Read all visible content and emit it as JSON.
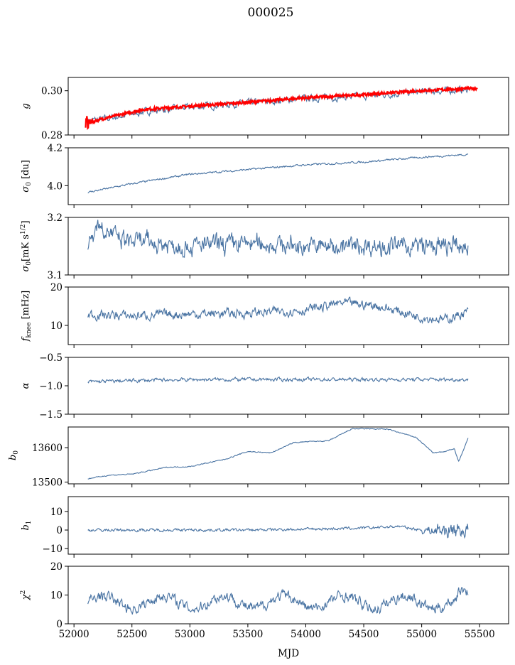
{
  "title": "000025",
  "chart_data": {
    "type": "line",
    "xlabel": "MJD",
    "xlim": [
      51950,
      55750
    ],
    "xticks": [
      52000,
      52500,
      53000,
      53500,
      54000,
      54500,
      55000,
      55500
    ],
    "x_range": [
      52120,
      55400
    ],
    "series_color": "#4a74a3",
    "fit_color": "#ff0000",
    "panels": [
      {
        "name": "g",
        "ylabel": "g",
        "ylim": [
          0.28,
          0.306
        ],
        "yticks": [
          0.28,
          0.3
        ],
        "ytick_labels": [
          "0.28",
          "0.30"
        ],
        "trend": [
          [
            52120,
            0.2865
          ],
          [
            52300,
            0.2875
          ],
          [
            52600,
            0.2905
          ],
          [
            53000,
            0.2925
          ],
          [
            53500,
            0.2945
          ],
          [
            54000,
            0.2965
          ],
          [
            54500,
            0.2975
          ],
          [
            55000,
            0.2995
          ],
          [
            55400,
            0.3005
          ]
        ],
        "noise": 0.0012,
        "x_start": 52120,
        "x_end": 55400,
        "fit": {
          "name": "fit",
          "trend": [
            [
              52120,
              0.2855
            ],
            [
              52300,
              0.288
            ],
            [
              52600,
              0.2915
            ],
            [
              53000,
              0.293
            ],
            [
              53500,
              0.2948
            ],
            [
              54000,
              0.2968
            ],
            [
              54500,
              0.2982
            ],
            [
              55000,
              0.3
            ],
            [
              55400,
              0.301
            ]
          ],
          "x_start": 52100,
          "x_end": 55480
        }
      },
      {
        "name": "sigma0-du",
        "ylabel": "σ0 [du]",
        "ylim": [
          3.9,
          4.2
        ],
        "yticks": [
          4.0,
          4.2
        ],
        "ytick_labels": [
          "4.0",
          "4.2"
        ],
        "trend": [
          [
            52120,
            3.965
          ],
          [
            52500,
            4.01
          ],
          [
            53000,
            4.06
          ],
          [
            53500,
            4.085
          ],
          [
            54000,
            4.11
          ],
          [
            54500,
            4.125
          ],
          [
            55000,
            4.15
          ],
          [
            55400,
            4.165
          ]
        ],
        "noise": 0.004,
        "x_start": 52120,
        "x_end": 55400
      },
      {
        "name": "sigma0-mk",
        "ylabel": "σ0[mK s^1/2]",
        "ylim": [
          3.1,
          3.2
        ],
        "yticks": [
          3.1,
          3.2
        ],
        "ytick_labels": [
          "3.1",
          "3.2"
        ],
        "trend": [
          [
            52120,
            3.15
          ],
          [
            52200,
            3.19
          ],
          [
            52400,
            3.16
          ],
          [
            53000,
            3.15
          ],
          [
            53500,
            3.155
          ],
          [
            54000,
            3.15
          ],
          [
            54500,
            3.15
          ],
          [
            55000,
            3.15
          ],
          [
            55400,
            3.148
          ]
        ],
        "noise": 0.012,
        "x_start": 52120,
        "x_end": 55400
      },
      {
        "name": "fknee",
        "ylabel": "fknee [mHz]",
        "ylim": [
          5,
          20
        ],
        "yticks": [
          10,
          20
        ],
        "ytick_labels": [
          "10",
          "20"
        ],
        "trend": [
          [
            52120,
            12.8
          ],
          [
            52500,
            12.5
          ],
          [
            53000,
            13
          ],
          [
            53500,
            13.2
          ],
          [
            54000,
            14
          ],
          [
            54300,
            15.8
          ],
          [
            54600,
            15.2
          ],
          [
            55000,
            12.2
          ],
          [
            55200,
            11.5
          ],
          [
            55400,
            13.5
          ]
        ],
        "noise": 1.0,
        "x_start": 52120,
        "x_end": 55400
      },
      {
        "name": "alpha",
        "ylabel": "α",
        "ylim": [
          -1.5,
          -0.5
        ],
        "yticks": [
          -1.5,
          -1.0,
          -0.5
        ],
        "ytick_labels": [
          "−1.5",
          "−1.0",
          "−0.5"
        ],
        "trend": [
          [
            52120,
            -0.93
          ],
          [
            52500,
            -0.91
          ],
          [
            53000,
            -0.89
          ],
          [
            53500,
            -0.89
          ],
          [
            54000,
            -0.89
          ],
          [
            54500,
            -0.89
          ],
          [
            55000,
            -0.89
          ],
          [
            55400,
            -0.89
          ]
        ],
        "noise": 0.025,
        "x_start": 52120,
        "x_end": 55400
      },
      {
        "name": "b0",
        "ylabel": "b0",
        "ylim": [
          13495,
          13660
        ],
        "yticks": [
          13500,
          13600
        ],
        "ytick_labels": [
          "13500",
          "13600"
        ],
        "trend": [
          [
            52120,
            13510
          ],
          [
            52300,
            13520
          ],
          [
            52500,
            13523
          ],
          [
            52800,
            13543
          ],
          [
            53000,
            13545
          ],
          [
            53300,
            13566
          ],
          [
            53500,
            13589
          ],
          [
            53700,
            13585
          ],
          [
            53900,
            13615
          ],
          [
            54000,
            13617
          ],
          [
            54200,
            13620
          ],
          [
            54400,
            13655
          ],
          [
            54700,
            13654
          ],
          [
            54950,
            13630
          ],
          [
            55100,
            13585
          ],
          [
            55200,
            13588
          ],
          [
            55280,
            13598
          ],
          [
            55320,
            13560
          ],
          [
            55400,
            13627
          ]
        ],
        "noise": 1.2,
        "x_start": 52120,
        "x_end": 55400
      },
      {
        "name": "b1",
        "ylabel": "b1",
        "ylim": [
          -13,
          18
        ],
        "yticks": [
          -10,
          0,
          10
        ],
        "ytick_labels": [
          "−10",
          "0",
          "10"
        ],
        "trend": [
          [
            52120,
            0
          ],
          [
            53500,
            0
          ],
          [
            54500,
            1
          ],
          [
            54800,
            2
          ],
          [
            55000,
            0
          ],
          [
            55400,
            0
          ]
        ],
        "noise": 0.6,
        "x_start": 52120,
        "x_end": 55400
      },
      {
        "name": "chi2",
        "ylabel": "χ²",
        "ylim": [
          0,
          20
        ],
        "yticks": [
          0,
          10,
          20
        ],
        "ytick_labels": [
          "0",
          "10",
          "20"
        ],
        "trend": [
          [
            52120,
            7
          ],
          [
            55400,
            8
          ]
        ],
        "noise": 1.5,
        "x_start": 52120,
        "x_end": 55400
      }
    ]
  }
}
